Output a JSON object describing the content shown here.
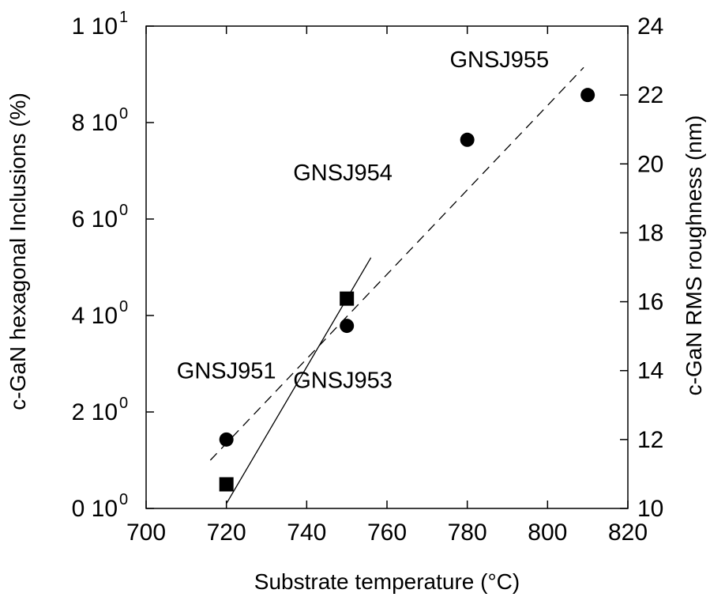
{
  "chart_data": {
    "type": "scatter",
    "title": "",
    "xlabel": "Substrate temperature (°C)",
    "ylabel_left": "c-GaN hexagonal Inclusions (%)",
    "ylabel_right": "c-GaN RMS roughness (nm)",
    "xlim": [
      700,
      820
    ],
    "ylim_left": [
      0,
      10
    ],
    "ylim_right": [
      10,
      24
    ],
    "x_ticks": [
      700,
      720,
      740,
      760,
      780,
      800,
      820
    ],
    "y_left_ticks": [
      {
        "value": 0,
        "mantissa": "0 10",
        "exp": "0"
      },
      {
        "value": 2,
        "mantissa": "2 10",
        "exp": "0"
      },
      {
        "value": 4,
        "mantissa": "4 10",
        "exp": "0"
      },
      {
        "value": 6,
        "mantissa": "6 10",
        "exp": "0"
      },
      {
        "value": 8,
        "mantissa": "8 10",
        "exp": "0"
      },
      {
        "value": 10,
        "mantissa": "1 10",
        "exp": "1"
      }
    ],
    "y_right_ticks": [
      10,
      12,
      14,
      16,
      18,
      20,
      22,
      24
    ],
    "series": [
      {
        "axis": "left",
        "marker": "square",
        "points": [
          {
            "x": 720,
            "y": 0.5
          },
          {
            "x": 750,
            "y": 4.35
          }
        ]
      },
      {
        "axis": "right",
        "marker": "circle",
        "points": [
          {
            "x": 720,
            "y": 12.0
          },
          {
            "x": 750,
            "y": 15.3
          },
          {
            "x": 780,
            "y": 20.7
          },
          {
            "x": 810,
            "y": 22.0
          }
        ]
      }
    ],
    "fit_lines": [
      {
        "axis": "left",
        "style": "solid",
        "from": {
          "x": 720,
          "y": 0.1
        },
        "to": {
          "x": 756,
          "y": 5.2
        }
      },
      {
        "axis": "right",
        "style": "dashed",
        "from": {
          "x": 716,
          "y": 11.4
        },
        "to": {
          "x": 809,
          "y": 22.8
        }
      }
    ],
    "annotations": [
      {
        "text": "GNSJ951",
        "x": 720,
        "y_left": 2.7
      },
      {
        "text": "GNSJ953",
        "x": 749,
        "y_left": 2.5
      },
      {
        "text": "GNSJ954",
        "x": 749,
        "y_left": 6.8
      },
      {
        "text": "GNSJ955",
        "x": 788,
        "y_left": 9.15
      }
    ],
    "grid": false,
    "legend": "none"
  }
}
